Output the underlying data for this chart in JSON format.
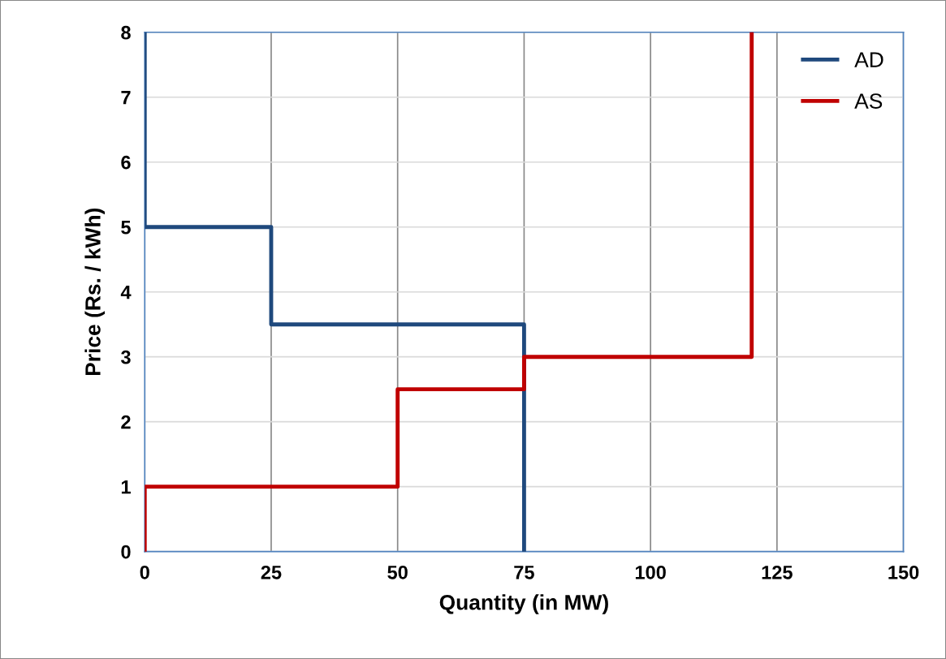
{
  "chart_data": {
    "type": "line",
    "xlabel": "Quantity (in MW)",
    "ylabel": "Price (Rs. / kWh)",
    "xlim": [
      0,
      150
    ],
    "xticks": [
      0,
      25,
      50,
      75,
      100,
      125,
      150
    ],
    "ylim": [
      0,
      8
    ],
    "yticks": [
      0,
      1,
      2,
      3,
      4,
      5,
      6,
      7,
      8
    ],
    "grid": true,
    "legend": "top right",
    "marker": "none",
    "line_style": "solid",
    "series": [
      {
        "name": "AD",
        "color": "#1f497d",
        "x": [
          0,
          0,
          25,
          25,
          75,
          75
        ],
        "values": [
          8,
          5,
          5,
          3.5,
          3.5,
          0
        ]
      },
      {
        "name": "AS",
        "color": "#c00000",
        "x": [
          0,
          0,
          50,
          50,
          75,
          75,
          120,
          120
        ],
        "values": [
          0,
          1,
          1,
          2.5,
          2.5,
          3,
          3,
          8
        ]
      }
    ]
  }
}
